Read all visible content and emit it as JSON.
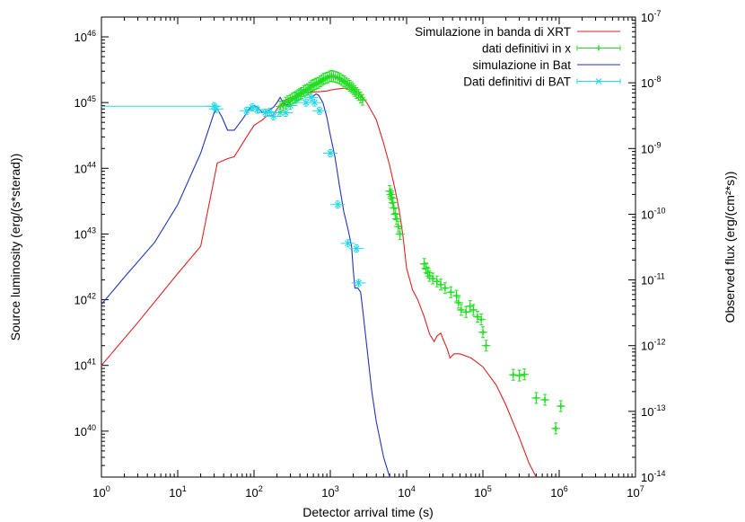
{
  "chart_data": {
    "type": "scatter",
    "title": "",
    "xlabel": "Detector arrival time (s)",
    "ylabel": "Source luminosity (erg/(s*sterad))",
    "y2label": "Observed flux (erg/(cm²*s))",
    "xscale": "log",
    "yscale": "log",
    "xlim": [
      1,
      10000000
    ],
    "ylim": [
      2e+39,
      2e+46
    ],
    "y2lim": [
      1e-14,
      1e-07
    ],
    "x_ticks": [
      {
        "value": 1,
        "base": "10",
        "exp": "0"
      },
      {
        "value": 10,
        "base": "10",
        "exp": "1"
      },
      {
        "value": 100,
        "base": "10",
        "exp": "2"
      },
      {
        "value": 1000,
        "base": "10",
        "exp": "3"
      },
      {
        "value": 10000,
        "base": "10",
        "exp": "4"
      },
      {
        "value": 100000,
        "base": "10",
        "exp": "5"
      },
      {
        "value": 1000000,
        "base": "10",
        "exp": "6"
      },
      {
        "value": 10000000,
        "base": "10",
        "exp": "7"
      }
    ],
    "y_ticks": [
      {
        "value": 1e+40,
        "base": "10",
        "exp": "40"
      },
      {
        "value": 1e+41,
        "base": "10",
        "exp": "41"
      },
      {
        "value": 1e+42,
        "base": "10",
        "exp": "42"
      },
      {
        "value": 1e+43,
        "base": "10",
        "exp": "43"
      },
      {
        "value": 1e+44,
        "base": "10",
        "exp": "44"
      },
      {
        "value": 1e+45,
        "base": "10",
        "exp": "45"
      },
      {
        "value": 1e+46,
        "base": "10",
        "exp": "46"
      }
    ],
    "y2_ticks": [
      {
        "value": 1e-14,
        "base": "10",
        "exp": "-14"
      },
      {
        "value": 1e-13,
        "base": "10",
        "exp": "-13"
      },
      {
        "value": 1e-12,
        "base": "10",
        "exp": "-12"
      },
      {
        "value": 1e-11,
        "base": "10",
        "exp": "-11"
      },
      {
        "value": 1e-10,
        "base": "10",
        "exp": "-10"
      },
      {
        "value": 1e-09,
        "base": "10",
        "exp": "-9"
      },
      {
        "value": 1e-08,
        "base": "10",
        "exp": "-8"
      },
      {
        "value": 1e-07,
        "base": "10",
        "exp": "-7"
      }
    ],
    "legend_position": "top-right",
    "series": [
      {
        "name": "Simulazione in banda di XRT",
        "kind": "line",
        "axis": "y",
        "color": "#dd2222",
        "points": [
          [
            1,
            1e+41
          ],
          [
            3,
            4.5e+41
          ],
          [
            10,
            2.5e+42
          ],
          [
            20,
            6.5e+42
          ],
          [
            33,
            1.2e+44
          ],
          [
            45,
            1.4e+44
          ],
          [
            55,
            1.5e+44
          ],
          [
            80,
            3e+44
          ],
          [
            100,
            4.5e+44
          ],
          [
            130,
            5.5e+44
          ],
          [
            150,
            6.4e+44
          ],
          [
            175,
            6.3e+44
          ],
          [
            200,
            8e+44
          ],
          [
            260,
            1.1e+45
          ],
          [
            300,
            1.2e+45
          ],
          [
            350,
            1.25e+45
          ],
          [
            400,
            1.32e+45
          ],
          [
            500,
            1.42e+45
          ],
          [
            600,
            1.45e+45
          ],
          [
            750,
            1.47e+45
          ],
          [
            900,
            1.5e+45
          ],
          [
            1000,
            1.55e+45
          ],
          [
            1200,
            1.6e+45
          ],
          [
            1500,
            1.65e+45
          ],
          [
            2000,
            1.55e+45
          ],
          [
            2500,
            1.3e+45
          ],
          [
            3000,
            1e+45
          ],
          [
            4000,
            5.5e+44
          ],
          [
            5000,
            2.4e+44
          ],
          [
            6000,
            1.1e+44
          ],
          [
            7000,
            5e+43
          ],
          [
            8000,
            2.3e+43
          ],
          [
            9000,
            9e+42
          ],
          [
            10000,
            3e+42
          ],
          [
            12000,
            1.4e+42
          ],
          [
            14000,
            1e+42
          ],
          [
            17000,
            5.5e+41
          ],
          [
            20000,
            3e+41
          ],
          [
            23000,
            2.3e+41
          ],
          [
            25000,
            2.8e+41
          ],
          [
            28000,
            3.1e+41
          ],
          [
            31000,
            2.3e+41
          ],
          [
            34000,
            1.8e+41
          ],
          [
            37000,
            1.3e+41
          ],
          [
            42000,
            1.5e+41
          ],
          [
            50000,
            1.5e+41
          ],
          [
            70000,
            1.3e+41
          ],
          [
            100000,
            9.5e+40
          ],
          [
            150000,
            5e+40
          ],
          [
            200000,
            2.5e+40
          ],
          [
            300000,
            8e+39
          ],
          [
            400000,
            3.3e+39
          ],
          [
            500000,
            1.8e+39
          ]
        ]
      },
      {
        "name": "dati definitivi in x",
        "kind": "points-errorbars",
        "axis": "y",
        "color": "#22dd22",
        "points": [
          [
            220,
            8.7e+44
          ],
          [
            240,
            9e+44
          ],
          [
            260,
            1e+45
          ],
          [
            280,
            1.05e+45
          ],
          [
            300,
            1.1e+45
          ],
          [
            320,
            1.15e+45
          ],
          [
            340,
            1.2e+45
          ],
          [
            360,
            1.25e+45
          ],
          [
            380,
            1.3e+45
          ],
          [
            400,
            1.35e+45
          ],
          [
            420,
            1.4e+45
          ],
          [
            450,
            1.5e+45
          ],
          [
            480,
            1.55e+45
          ],
          [
            510,
            1.6e+45
          ],
          [
            540,
            1.7e+45
          ],
          [
            570,
            1.8e+45
          ],
          [
            600,
            1.85e+45
          ],
          [
            630,
            1.9e+45
          ],
          [
            660,
            1.95e+45
          ],
          [
            700,
            2e+45
          ],
          [
            740,
            2.1e+45
          ],
          [
            780,
            2.2e+45
          ],
          [
            820,
            2.3e+45
          ],
          [
            870,
            2.35e+45
          ],
          [
            920,
            2.4e+45
          ],
          [
            980,
            2.5e+45
          ],
          [
            1040,
            2.55e+45
          ],
          [
            1100,
            2.5e+45
          ],
          [
            1170,
            2.45e+45
          ],
          [
            1250,
            2.4e+45
          ],
          [
            1330,
            2.3e+45
          ],
          [
            1420,
            2.2e+45
          ],
          [
            1510,
            2.1e+45
          ],
          [
            1600,
            2e+45
          ],
          [
            1700,
            1.9e+45
          ],
          [
            1800,
            1.8e+45
          ],
          [
            1900,
            1.7e+45
          ],
          [
            2000,
            1.6e+45
          ],
          [
            2100,
            1.5e+45
          ],
          [
            2200,
            1.4e+45
          ],
          [
            2350,
            1.3e+45
          ],
          [
            2500,
            1.2e+45
          ],
          [
            2650,
            1.1e+45
          ],
          [
            6000,
            4.5e+43
          ],
          [
            6200,
            4e+43
          ],
          [
            6400,
            3.5e+43
          ],
          [
            6600,
            3e+43
          ],
          [
            6800,
            2.5e+43
          ],
          [
            7100,
            2e+43
          ],
          [
            7400,
            1.7e+43
          ],
          [
            7800,
            1.3e+43
          ],
          [
            8200,
            1e+43
          ],
          [
            17000,
            3.5e+42
          ],
          [
            18000,
            3e+42
          ],
          [
            19000,
            2.6e+42
          ],
          [
            20000,
            2.3e+42
          ],
          [
            22000,
            2.1e+42
          ],
          [
            25000,
            1.9e+42
          ],
          [
            28000,
            1.7e+42
          ],
          [
            32000,
            1.5e+42
          ],
          [
            38000,
            1.3e+42
          ],
          [
            45000,
            1.15e+42
          ],
          [
            48000,
            9e+41
          ],
          [
            52000,
            7e+41
          ],
          [
            60000,
            6.5e+41
          ],
          [
            68000,
            8e+41
          ],
          [
            75000,
            7e+41
          ],
          [
            85000,
            5.5e+41
          ],
          [
            95000,
            5e+41
          ],
          [
            100000,
            3.2e+41
          ],
          [
            110000,
            2e+41
          ],
          [
            250000,
            7.2e+40
          ],
          [
            300000,
            7e+40
          ],
          [
            350000,
            7.3e+40
          ],
          [
            500000,
            3.2e+40
          ],
          [
            650000,
            3e+40
          ],
          [
            900000,
            1.1e+40
          ],
          [
            1050000,
            2.4e+40
          ]
        ]
      },
      {
        "name": "simulazione in Bat",
        "kind": "line",
        "axis": "y",
        "color": "#2233bb",
        "points": [
          [
            1,
            8.5e+41
          ],
          [
            2,
            2.2e+42
          ],
          [
            5,
            7.5e+42
          ],
          [
            10,
            2.8e+43
          ],
          [
            20,
            1.7e+44
          ],
          [
            30,
            7e+44
          ],
          [
            33,
            8e+44
          ],
          [
            38,
            6e+44
          ],
          [
            45,
            3.8e+44
          ],
          [
            55,
            3.8e+44
          ],
          [
            70,
            5.5e+44
          ],
          [
            90,
            8.5e+44
          ],
          [
            100,
            9e+44
          ],
          [
            110,
            8.5e+44
          ],
          [
            130,
            7e+44
          ],
          [
            160,
            7.8e+44
          ],
          [
            180,
            8.5e+44
          ],
          [
            200,
            1e+45
          ],
          [
            220,
            1.2e+45
          ],
          [
            240,
            1e+45
          ],
          [
            260,
            9e+44
          ],
          [
            300,
            1e+45
          ],
          [
            350,
            1.2e+45
          ],
          [
            400,
            1.4e+45
          ],
          [
            450,
            1.5e+45
          ],
          [
            500,
            1.4e+45
          ],
          [
            550,
            1.2e+45
          ],
          [
            600,
            1.25e+45
          ],
          [
            650,
            1.35e+45
          ],
          [
            700,
            1.3e+45
          ],
          [
            800,
            1e+45
          ],
          [
            900,
            6e+44
          ],
          [
            1000,
            3.2e+44
          ],
          [
            1150,
            1.5e+44
          ],
          [
            1300,
            6e+43
          ],
          [
            1500,
            2.2e+43
          ],
          [
            1700,
            1.2e+43
          ],
          [
            1900,
            6.5e+42
          ],
          [
            2000,
            2.8e+42
          ],
          [
            2100,
            1.5e+42
          ],
          [
            2300,
            1.5e+42
          ],
          [
            2500,
            1.3e+42
          ],
          [
            2700,
            6e+41
          ],
          [
            3000,
            2e+41
          ],
          [
            3500,
            4e+40
          ],
          [
            4000,
            1.4e+40
          ],
          [
            5000,
            4e+39
          ],
          [
            6000,
            1.7e+39
          ]
        ]
      },
      {
        "name": "Dati definitivi di BAT",
        "kind": "points-errorbars",
        "axis": "y",
        "color": "#22d8e8",
        "points": [
          [
            30,
            8.8e+44
          ],
          [
            32,
            8e+44
          ],
          [
            80,
            7.5e+44
          ],
          [
            95,
            8.5e+44
          ],
          [
            110,
            7.8e+44
          ],
          [
            140,
            7e+44
          ],
          [
            160,
            7.2e+44
          ],
          [
            180,
            6.2e+44
          ],
          [
            220,
            7e+44
          ],
          [
            260,
            7e+44
          ],
          [
            300,
            9e+44
          ],
          [
            360,
            1.1e+45
          ],
          [
            420,
            1.4e+45
          ],
          [
            480,
            1e+45
          ],
          [
            560,
            1.2e+45
          ],
          [
            620,
            1e+45
          ],
          [
            720,
            7.5e+44
          ],
          [
            1000,
            1.7e+44
          ],
          [
            1250,
            2.8e+43
          ],
          [
            1700,
            7.2e+42
          ],
          [
            2200,
            6e+42
          ],
          [
            2350,
            1.8e+42
          ]
        ],
        "baseline": {
          "x_start": 1,
          "x_end": 30,
          "value": 8.8e+44
        }
      }
    ]
  }
}
